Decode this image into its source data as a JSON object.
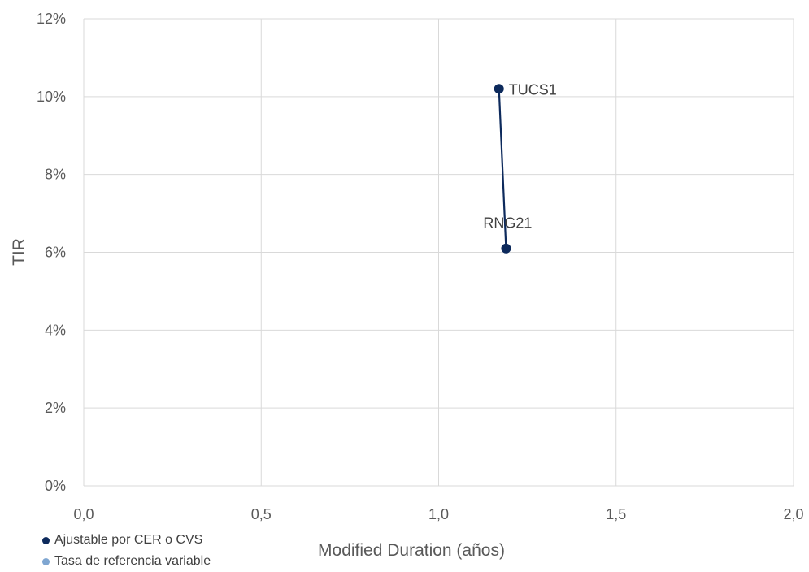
{
  "chart_data": {
    "type": "scatter",
    "xlabel": "Modified Duration (años)",
    "ylabel": "TIR",
    "xlim": [
      0,
      2
    ],
    "ylim": [
      0,
      0.12
    ],
    "x_ticks": [
      "0,0",
      "0,5",
      "1,0",
      "1,5",
      "2,0"
    ],
    "x_tick_values": [
      0,
      0.5,
      1,
      1.5,
      2
    ],
    "y_ticks": [
      "0%",
      "2%",
      "4%",
      "6%",
      "8%",
      "10%",
      "12%"
    ],
    "y_tick_values": [
      0,
      0.02,
      0.04,
      0.06,
      0.08,
      0.1,
      0.12
    ],
    "grid": true,
    "legend_position": "bottom-left",
    "series": [
      {
        "name": "Ajustable por CER o CVS",
        "color": "#0d2a5c",
        "connected": true,
        "points": [
          {
            "label": "TUCS1",
            "x": 1.17,
            "y": 0.102
          },
          {
            "label": "RNG21",
            "x": 1.19,
            "y": 0.061
          }
        ]
      },
      {
        "name": "Tasa de referencia variable",
        "color": "#7fa6d1",
        "connected": false,
        "points": []
      }
    ]
  }
}
